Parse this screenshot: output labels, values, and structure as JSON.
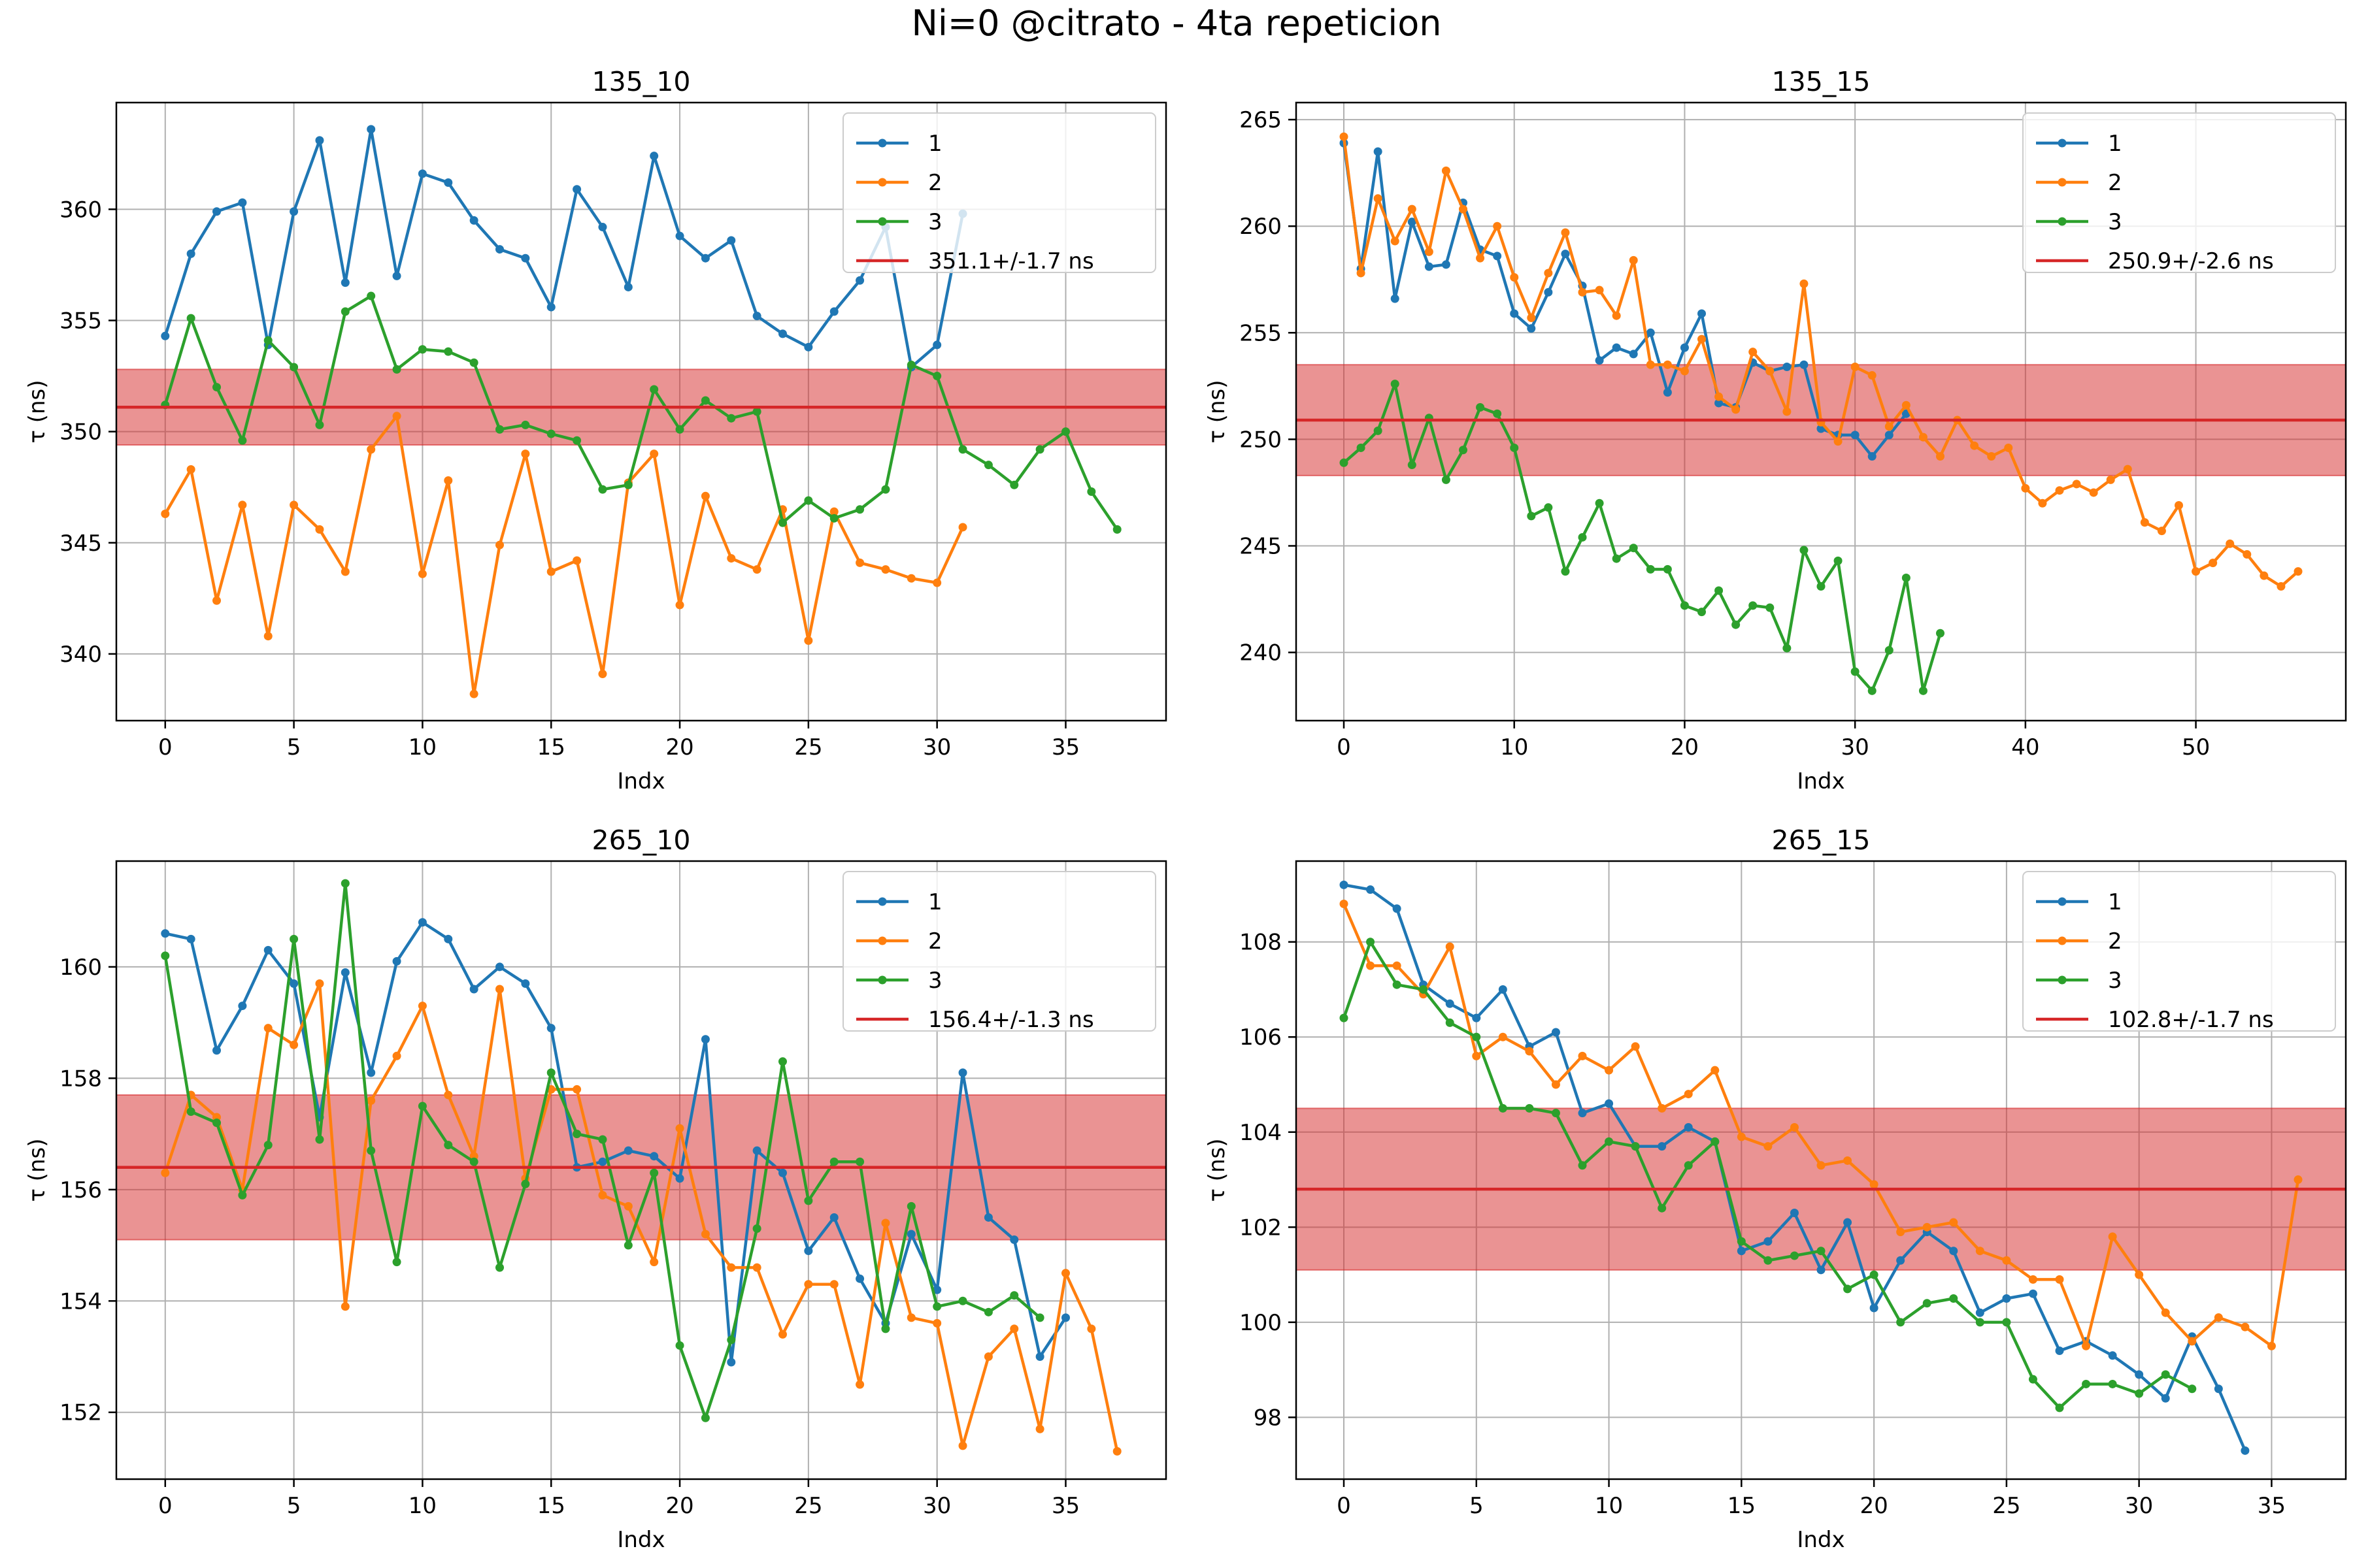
{
  "figure_title": "Ni=0 @citrato - 4ta repeticion",
  "colors": {
    "s1": "#1f77b4",
    "s2": "#ff7f0e",
    "s3": "#2ca02c",
    "mean": "#d62728",
    "band": "#e8888c"
  },
  "chart_data": [
    {
      "type": "line",
      "title": "135_10",
      "xlabel": "Indx",
      "ylabel": "τ (ns)",
      "xlim": [
        -1.9,
        38.9
      ],
      "ylim": [
        337.0,
        364.8
      ],
      "xticks": [
        0,
        5,
        10,
        15,
        20,
        25,
        30,
        35
      ],
      "yticks": [
        340,
        345,
        350,
        355,
        360
      ],
      "grid": true,
      "legend_position": "top-right",
      "mean": 351.1,
      "err": 1.7,
      "mean_label": "351.1+/-1.7 ns",
      "series": [
        {
          "name": "1",
          "values": [
            354.3,
            358.0,
            359.9,
            360.3,
            353.9,
            359.9,
            363.1,
            356.7,
            363.6,
            357.0,
            361.6,
            361.2,
            359.5,
            358.2,
            357.8,
            355.6,
            360.9,
            359.2,
            356.5,
            362.4,
            358.8,
            357.8,
            358.6,
            355.2,
            354.4,
            353.8,
            355.4,
            356.8,
            359.2,
            352.9,
            353.9,
            359.8
          ]
        },
        {
          "name": "2",
          "values": [
            346.3,
            348.3,
            342.4,
            346.7,
            340.8,
            346.7,
            345.6,
            343.7,
            349.2,
            350.7,
            343.6,
            347.8,
            338.2,
            344.9,
            349.0,
            343.7,
            344.2,
            339.1,
            347.7,
            349.0,
            342.2,
            347.1,
            344.3,
            343.8,
            346.5,
            340.6,
            346.4,
            344.1,
            343.8,
            343.4,
            343.2,
            345.7
          ]
        },
        {
          "name": "3",
          "values": [
            351.2,
            355.1,
            352.0,
            349.6,
            354.1,
            352.9,
            350.3,
            355.4,
            356.1,
            352.8,
            353.7,
            353.6,
            353.1,
            350.1,
            350.3,
            349.9,
            349.6,
            347.4,
            347.6,
            351.9,
            350.1,
            351.4,
            350.6,
            350.9,
            345.9,
            346.9,
            346.1,
            346.5,
            347.4,
            353.0,
            352.5,
            349.2,
            348.5,
            347.6,
            349.2,
            350.0,
            347.3,
            345.6
          ]
        }
      ]
    },
    {
      "type": "line",
      "title": "135_15",
      "xlabel": "Indx",
      "ylabel": "τ (ns)",
      "xlim": [
        -2.8,
        58.8
      ],
      "ylim": [
        236.8,
        265.8
      ],
      "xticks": [
        0,
        10,
        20,
        30,
        40,
        50
      ],
      "yticks": [
        240,
        245,
        250,
        255,
        260,
        265
      ],
      "grid": true,
      "legend_position": "top-right",
      "mean": 250.9,
      "err": 2.6,
      "mean_label": "250.9+/-2.6 ns",
      "series": [
        {
          "name": "1",
          "values": [
            263.9,
            258.0,
            263.5,
            256.6,
            260.2,
            258.1,
            258.2,
            261.1,
            258.9,
            258.6,
            255.9,
            255.2,
            256.9,
            258.7,
            257.2,
            253.7,
            254.3,
            254.0,
            255.0,
            252.2,
            254.3,
            255.9,
            251.7,
            251.5,
            253.6,
            253.2,
            253.4,
            253.5,
            250.5,
            250.2,
            250.2,
            249.2,
            250.2,
            251.2
          ]
        },
        {
          "name": "2",
          "values": [
            264.2,
            257.8,
            261.3,
            259.3,
            260.8,
            258.8,
            262.6,
            260.8,
            258.5,
            260.0,
            257.6,
            255.7,
            257.8,
            259.7,
            256.9,
            257.0,
            255.8,
            258.4,
            253.5,
            253.5,
            253.2,
            254.7,
            252.0,
            251.4,
            254.1,
            253.2,
            251.3,
            257.3,
            250.8,
            249.9,
            253.4,
            253.0,
            250.6,
            251.6,
            250.1,
            249.2,
            250.9,
            249.7,
            249.2,
            249.6,
            247.7,
            247.0,
            247.6,
            247.9,
            247.5,
            248.1,
            248.6,
            246.1,
            245.7,
            246.9,
            243.8,
            244.2,
            245.1,
            244.6,
            243.6,
            243.1,
            243.8
          ]
        },
        {
          "name": "3",
          "values": [
            248.9,
            249.6,
            250.4,
            252.6,
            248.8,
            251.0,
            248.1,
            249.5,
            251.5,
            251.2,
            249.6,
            246.4,
            246.8,
            243.8,
            245.4,
            247.0,
            244.4,
            244.9,
            243.9,
            243.9,
            242.2,
            241.9,
            242.9,
            241.3,
            242.2,
            242.1,
            240.2,
            244.8,
            243.1,
            244.3,
            239.1,
            238.2,
            240.1,
            243.5,
            238.2,
            240.9
          ]
        }
      ]
    },
    {
      "type": "line",
      "title": "265_10",
      "xlabel": "Indx",
      "ylabel": "τ (ns)",
      "xlim": [
        -1.9,
        38.9
      ],
      "ylim": [
        150.8,
        161.9
      ],
      "xticks": [
        0,
        5,
        10,
        15,
        20,
        25,
        30,
        35
      ],
      "yticks": [
        152,
        154,
        156,
        158,
        160
      ],
      "grid": true,
      "legend_position": "top-right",
      "mean": 156.4,
      "err": 1.3,
      "mean_label": "156.4+/-1.3 ns",
      "series": [
        {
          "name": "1",
          "values": [
            160.6,
            160.5,
            158.5,
            159.3,
            160.3,
            159.7,
            157.3,
            159.9,
            158.1,
            160.1,
            160.8,
            160.5,
            159.6,
            160.0,
            159.7,
            158.9,
            156.4,
            156.5,
            156.7,
            156.6,
            156.2,
            158.7,
            152.9,
            156.7,
            156.3,
            154.9,
            155.5,
            154.4,
            153.6,
            155.2,
            154.2,
            158.1,
            155.5,
            155.1,
            153.0,
            153.7
          ]
        },
        {
          "name": "2",
          "values": [
            156.3,
            157.7,
            157.3,
            156.0,
            158.9,
            158.6,
            159.7,
            153.9,
            157.6,
            158.4,
            159.3,
            157.7,
            156.6,
            159.6,
            156.2,
            157.8,
            157.8,
            155.9,
            155.7,
            154.7,
            157.1,
            155.2,
            154.6,
            154.6,
            153.4,
            154.3,
            154.3,
            152.5,
            155.4,
            153.7,
            153.6,
            151.4,
            153.0,
            153.5,
            151.7,
            154.5,
            153.5,
            151.3
          ]
        },
        {
          "name": "3",
          "values": [
            160.2,
            157.4,
            157.2,
            155.9,
            156.8,
            160.5,
            156.9,
            161.5,
            156.7,
            154.7,
            157.5,
            156.8,
            156.5,
            154.6,
            156.1,
            158.1,
            157.0,
            156.9,
            155.0,
            156.3,
            153.2,
            151.9,
            153.3,
            155.3,
            158.3,
            155.8,
            156.5,
            156.5,
            153.5,
            155.7,
            153.9,
            154.0,
            153.8,
            154.1,
            153.7
          ]
        }
      ]
    },
    {
      "type": "line",
      "title": "265_15",
      "xlabel": "Indx",
      "ylabel": "τ (ns)",
      "xlim": [
        -1.8,
        37.8
      ],
      "ylim": [
        96.7,
        109.7
      ],
      "xticks": [
        0,
        5,
        10,
        15,
        20,
        25,
        30,
        35
      ],
      "yticks": [
        98,
        100,
        102,
        104,
        106,
        108
      ],
      "grid": true,
      "legend_position": "top-right",
      "mean": 102.8,
      "err": 1.7,
      "mean_label": "102.8+/-1.7 ns",
      "series": [
        {
          "name": "1",
          "values": [
            109.2,
            109.1,
            108.7,
            107.1,
            106.7,
            106.4,
            107.0,
            105.8,
            106.1,
            104.4,
            104.6,
            103.7,
            103.7,
            104.1,
            103.8,
            101.5,
            101.7,
            102.3,
            101.1,
            102.1,
            100.3,
            101.3,
            101.9,
            101.5,
            100.2,
            100.5,
            100.6,
            99.4,
            99.6,
            99.3,
            98.9,
            98.4,
            99.7,
            98.6,
            97.3
          ]
        },
        {
          "name": "2",
          "values": [
            108.8,
            107.5,
            107.5,
            106.9,
            107.9,
            105.6,
            106.0,
            105.7,
            105.0,
            105.6,
            105.3,
            105.8,
            104.5,
            104.8,
            105.3,
            103.9,
            103.7,
            104.1,
            103.3,
            103.4,
            102.9,
            101.9,
            102.0,
            102.1,
            101.5,
            101.3,
            100.9,
            100.9,
            99.5,
            101.8,
            101.0,
            100.2,
            99.6,
            100.1,
            99.9,
            99.5,
            103.0
          ]
        },
        {
          "name": "3",
          "values": [
            106.4,
            108.0,
            107.1,
            107.0,
            106.3,
            106.0,
            104.5,
            104.5,
            104.4,
            103.3,
            103.8,
            103.7,
            102.4,
            103.3,
            103.8,
            101.7,
            101.3,
            101.4,
            101.5,
            100.7,
            101.0,
            100.0,
            100.4,
            100.5,
            100.0,
            100.0,
            98.8,
            98.2,
            98.7,
            98.7,
            98.5,
            98.9,
            98.6
          ]
        }
      ]
    }
  ]
}
